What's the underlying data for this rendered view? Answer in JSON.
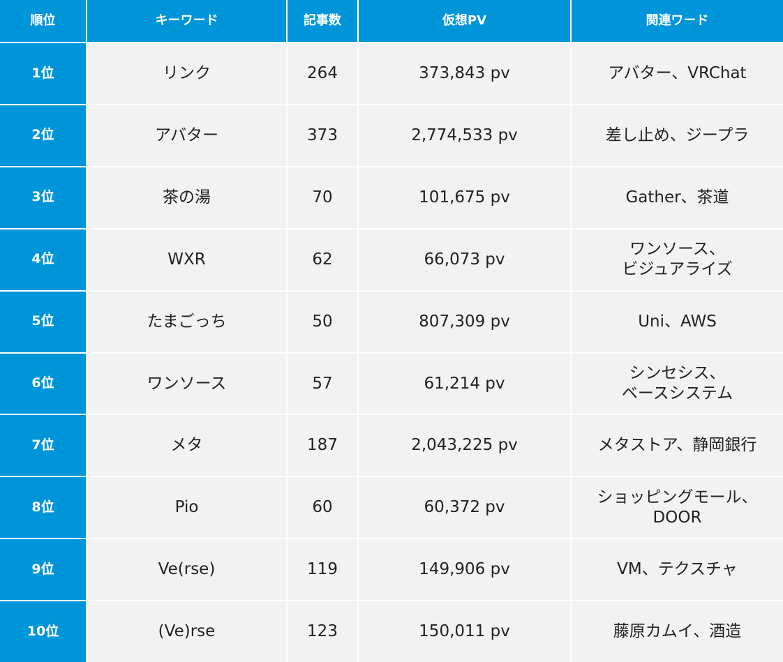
{
  "table": {
    "header": [
      "順位",
      "キーワード",
      "記事数",
      "仮想PV",
      "関連ワード"
    ],
    "rows": [
      [
        "1位",
        "リンク",
        "264",
        "373,843 pv",
        "アバター、VRChat"
      ],
      [
        "2位",
        "アバター",
        "373",
        "2,774,533 pv",
        "差し止め、ジープラ"
      ],
      [
        "3位",
        "茶の湯",
        "70",
        "101,675 pv",
        "Gather、茶道"
      ],
      [
        "4位",
        "WXR",
        "62",
        "66,073 pv",
        "ワンソース、\nビジュアライズ"
      ],
      [
        "5位",
        "たまごっち",
        "50",
        "807,309 pv",
        "Uni、AWS"
      ],
      [
        "6位",
        "ワンソース",
        "57",
        "61,214 pv",
        "シンセシス、\nベースシステム"
      ],
      [
        "7位",
        "メタ",
        "187",
        "2,043,225 pv",
        "メタストア、静岡銀行"
      ],
      [
        "8位",
        "Pio",
        "60",
        "60,372 pv",
        "ショッピングモール、\nDOOR"
      ],
      [
        "9位",
        "Ve(rse)",
        "119",
        "149,906 pv",
        "VM、テクスチャ"
      ],
      [
        "10位",
        "(Ve)rse",
        "123",
        "150,011 pv",
        "藤原カムイ、酒造"
      ]
    ]
  }
}
